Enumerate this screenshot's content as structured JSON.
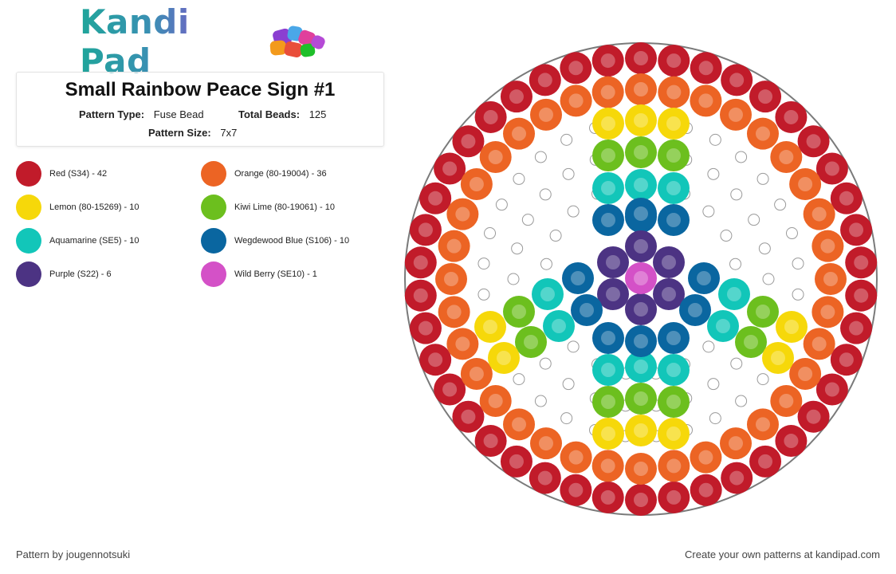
{
  "brand": {
    "name": "Kandi Pad"
  },
  "pattern": {
    "title": "Small Rainbow Peace Sign #1",
    "type_label": "Pattern Type:",
    "type_value": "Fuse Bead",
    "total_label": "Total Beads:",
    "total_value": "125",
    "size_label": "Pattern Size:",
    "size_value": "7x7"
  },
  "legend": [
    {
      "label": "Red (S34) - 42",
      "color": "#c11b2a"
    },
    {
      "label": "Orange (80-19004) - 36",
      "color": "#ec6424"
    },
    {
      "label": "Lemon (80-15269) - 10",
      "color": "#f6d80a"
    },
    {
      "label": "Kiwi Lime (80-19061) - 10",
      "color": "#6cbf1e"
    },
    {
      "label": "Aquamarine (SE5) - 10",
      "color": "#12c6b9"
    },
    {
      "label": "Wegdewood Blue (S106) - 10",
      "color": "#0a66a0"
    },
    {
      "label": "Purple (S22) - 6",
      "color": "#4c3383"
    },
    {
      "label": "Wild Berry (SE10) - 1",
      "color": "#d451c7"
    }
  ],
  "footer": {
    "credit": "Pattern by jougennotsuki",
    "promo": "Create your own patterns at kandipad.com"
  },
  "colors": {
    "red": "#c11b2a",
    "orange": "#ec6424",
    "lemon": "#f6d80a",
    "kiwi": "#6cbf1e",
    "aqua": "#12c6b9",
    "blue": "#0a66a0",
    "purple": "#4c3383",
    "berry": "#d451c7"
  }
}
